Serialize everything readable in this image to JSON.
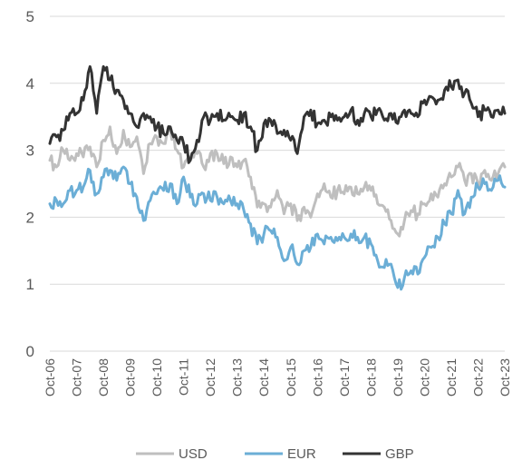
{
  "chart_data": {
    "type": "line",
    "title": "",
    "xlabel": "",
    "ylabel": "",
    "ylim": [
      0,
      5
    ],
    "yticks": [
      "0",
      "1",
      "2",
      "3",
      "4",
      "5"
    ],
    "x_tick_labels": [
      "Oct-06",
      "Oct-07",
      "Oct-08",
      "Oct-09",
      "Oct-10",
      "Oct-11",
      "Oct-12",
      "Oct-13",
      "Oct-14",
      "Oct-15",
      "Oct-16",
      "Oct-17",
      "Oct-18",
      "Oct-19",
      "Oct-20",
      "Oct-21",
      "Oct-22",
      "Oct-23"
    ],
    "x_years_range": [
      2006.75,
      2023.75
    ],
    "grid": "horizontal",
    "legend_position": "bottom",
    "series": [
      {
        "name": "USD",
        "color": "#bfbfbf",
        "points": [
          [
            2006.75,
            2.85
          ],
          [
            2007.0,
            2.75
          ],
          [
            2007.25,
            3.0
          ],
          [
            2007.5,
            2.85
          ],
          [
            2007.75,
            2.95
          ],
          [
            2008.0,
            2.9
          ],
          [
            2008.25,
            3.05
          ],
          [
            2008.5,
            2.75
          ],
          [
            2008.75,
            3.15
          ],
          [
            2009.0,
            3.35
          ],
          [
            2009.25,
            2.95
          ],
          [
            2009.5,
            3.3
          ],
          [
            2009.75,
            3.05
          ],
          [
            2010.0,
            3.2
          ],
          [
            2010.25,
            2.65
          ],
          [
            2010.5,
            3.1
          ],
          [
            2010.75,
            3.2
          ],
          [
            2011.0,
            3.1
          ],
          [
            2011.25,
            3.3
          ],
          [
            2011.5,
            3.0
          ],
          [
            2011.75,
            2.75
          ],
          [
            2012.0,
            2.85
          ],
          [
            2012.25,
            2.95
          ],
          [
            2012.5,
            2.75
          ],
          [
            2012.75,
            2.95
          ],
          [
            2013.0,
            2.95
          ],
          [
            2013.25,
            2.8
          ],
          [
            2013.5,
            2.9
          ],
          [
            2013.75,
            2.75
          ],
          [
            2014.0,
            2.85
          ],
          [
            2014.25,
            2.6
          ],
          [
            2014.5,
            2.15
          ],
          [
            2014.75,
            2.2
          ],
          [
            2015.0,
            2.15
          ],
          [
            2015.25,
            2.4
          ],
          [
            2015.5,
            2.05
          ],
          [
            2015.75,
            2.2
          ],
          [
            2016.0,
            1.95
          ],
          [
            2016.25,
            2.15
          ],
          [
            2016.5,
            2.0
          ],
          [
            2016.75,
            2.35
          ],
          [
            2017.0,
            2.5
          ],
          [
            2017.25,
            2.3
          ],
          [
            2017.5,
            2.4
          ],
          [
            2017.75,
            2.35
          ],
          [
            2018.0,
            2.45
          ],
          [
            2018.25,
            2.35
          ],
          [
            2018.5,
            2.45
          ],
          [
            2018.75,
            2.4
          ],
          [
            2019.0,
            2.2
          ],
          [
            2019.25,
            2.15
          ],
          [
            2019.5,
            1.95
          ],
          [
            2019.75,
            1.75
          ],
          [
            2020.0,
            1.95
          ],
          [
            2020.25,
            2.1
          ],
          [
            2020.5,
            2.05
          ],
          [
            2020.75,
            2.2
          ],
          [
            2021.0,
            2.35
          ],
          [
            2021.25,
            2.3
          ],
          [
            2021.5,
            2.5
          ],
          [
            2021.75,
            2.6
          ],
          [
            2022.0,
            2.75
          ],
          [
            2022.25,
            2.55
          ],
          [
            2022.5,
            2.65
          ],
          [
            2022.75,
            2.5
          ],
          [
            2023.0,
            2.7
          ],
          [
            2023.25,
            2.55
          ],
          [
            2023.5,
            2.65
          ],
          [
            2023.75,
            2.75
          ]
        ]
      },
      {
        "name": "EUR",
        "color": "#6baed6",
        "points": [
          [
            2006.75,
            2.2
          ],
          [
            2007.0,
            2.25
          ],
          [
            2007.25,
            2.2
          ],
          [
            2007.5,
            2.4
          ],
          [
            2007.75,
            2.4
          ],
          [
            2008.0,
            2.45
          ],
          [
            2008.25,
            2.7
          ],
          [
            2008.5,
            2.35
          ],
          [
            2008.75,
            2.6
          ],
          [
            2009.0,
            2.7
          ],
          [
            2009.25,
            2.55
          ],
          [
            2009.5,
            2.75
          ],
          [
            2009.75,
            2.5
          ],
          [
            2010.0,
            2.3
          ],
          [
            2010.25,
            1.95
          ],
          [
            2010.5,
            2.25
          ],
          [
            2010.75,
            2.35
          ],
          [
            2011.0,
            2.4
          ],
          [
            2011.25,
            2.5
          ],
          [
            2011.5,
            2.2
          ],
          [
            2011.75,
            2.6
          ],
          [
            2012.0,
            2.3
          ],
          [
            2012.25,
            2.2
          ],
          [
            2012.5,
            2.35
          ],
          [
            2012.75,
            2.25
          ],
          [
            2013.0,
            2.3
          ],
          [
            2013.25,
            2.2
          ],
          [
            2013.5,
            2.25
          ],
          [
            2013.75,
            2.2
          ],
          [
            2014.0,
            2.1
          ],
          [
            2014.25,
            1.9
          ],
          [
            2014.5,
            1.6
          ],
          [
            2014.75,
            1.75
          ],
          [
            2015.0,
            1.8
          ],
          [
            2015.25,
            1.7
          ],
          [
            2015.5,
            1.35
          ],
          [
            2015.75,
            1.55
          ],
          [
            2016.0,
            1.3
          ],
          [
            2016.25,
            1.5
          ],
          [
            2016.5,
            1.55
          ],
          [
            2016.75,
            1.75
          ],
          [
            2017.0,
            1.6
          ],
          [
            2017.25,
            1.7
          ],
          [
            2017.5,
            1.65
          ],
          [
            2017.75,
            1.7
          ],
          [
            2018.0,
            1.75
          ],
          [
            2018.25,
            1.7
          ],
          [
            2018.5,
            1.7
          ],
          [
            2018.75,
            1.6
          ],
          [
            2019.0,
            1.35
          ],
          [
            2019.25,
            1.25
          ],
          [
            2019.5,
            1.3
          ],
          [
            2019.75,
            0.95
          ],
          [
            2020.0,
            1.1
          ],
          [
            2020.25,
            1.2
          ],
          [
            2020.5,
            1.15
          ],
          [
            2020.75,
            1.4
          ],
          [
            2021.0,
            1.55
          ],
          [
            2021.25,
            1.7
          ],
          [
            2021.5,
            1.9
          ],
          [
            2021.75,
            2.05
          ],
          [
            2022.0,
            2.4
          ],
          [
            2022.25,
            2.05
          ],
          [
            2022.5,
            2.3
          ],
          [
            2022.75,
            2.45
          ],
          [
            2023.0,
            2.5
          ],
          [
            2023.25,
            2.4
          ],
          [
            2023.5,
            2.55
          ],
          [
            2023.75,
            2.45
          ]
        ]
      },
      {
        "name": "GBP",
        "color": "#333333",
        "points": [
          [
            2006.75,
            3.1
          ],
          [
            2007.0,
            3.2
          ],
          [
            2007.25,
            3.3
          ],
          [
            2007.5,
            3.55
          ],
          [
            2007.75,
            3.55
          ],
          [
            2008.0,
            3.75
          ],
          [
            2008.25,
            4.25
          ],
          [
            2008.5,
            3.55
          ],
          [
            2008.75,
            4.25
          ],
          [
            2009.0,
            4.05
          ],
          [
            2009.25,
            3.9
          ],
          [
            2009.5,
            3.75
          ],
          [
            2009.75,
            3.55
          ],
          [
            2010.0,
            3.35
          ],
          [
            2010.25,
            3.55
          ],
          [
            2010.5,
            3.5
          ],
          [
            2010.75,
            3.35
          ],
          [
            2011.0,
            3.25
          ],
          [
            2011.25,
            3.35
          ],
          [
            2011.5,
            3.15
          ],
          [
            2011.75,
            3.1
          ],
          [
            2012.0,
            2.85
          ],
          [
            2012.25,
            3.15
          ],
          [
            2012.5,
            3.5
          ],
          [
            2012.75,
            3.45
          ],
          [
            2013.0,
            3.55
          ],
          [
            2013.25,
            3.45
          ],
          [
            2013.5,
            3.5
          ],
          [
            2013.75,
            3.45
          ],
          [
            2014.0,
            3.55
          ],
          [
            2014.25,
            3.35
          ],
          [
            2014.5,
            3.0
          ],
          [
            2014.75,
            3.4
          ],
          [
            2015.0,
            3.45
          ],
          [
            2015.25,
            3.25
          ],
          [
            2015.5,
            3.3
          ],
          [
            2015.75,
            3.15
          ],
          [
            2016.0,
            2.95
          ],
          [
            2016.25,
            3.5
          ],
          [
            2016.5,
            3.6
          ],
          [
            2016.75,
            3.4
          ],
          [
            2017.0,
            3.45
          ],
          [
            2017.25,
            3.5
          ],
          [
            2017.5,
            3.45
          ],
          [
            2017.75,
            3.5
          ],
          [
            2018.0,
            3.6
          ],
          [
            2018.25,
            3.45
          ],
          [
            2018.5,
            3.55
          ],
          [
            2018.75,
            3.5
          ],
          [
            2019.0,
            3.6
          ],
          [
            2019.25,
            3.45
          ],
          [
            2019.5,
            3.55
          ],
          [
            2019.75,
            3.4
          ],
          [
            2020.0,
            3.6
          ],
          [
            2020.25,
            3.55
          ],
          [
            2020.5,
            3.5
          ],
          [
            2020.75,
            3.75
          ],
          [
            2021.0,
            3.8
          ],
          [
            2021.25,
            3.75
          ],
          [
            2021.5,
            3.9
          ],
          [
            2021.75,
            3.95
          ],
          [
            2022.0,
            4.05
          ],
          [
            2022.25,
            3.85
          ],
          [
            2022.5,
            3.7
          ],
          [
            2022.75,
            3.5
          ],
          [
            2023.0,
            3.6
          ],
          [
            2023.25,
            3.5
          ],
          [
            2023.5,
            3.6
          ],
          [
            2023.75,
            3.55
          ]
        ]
      }
    ]
  }
}
